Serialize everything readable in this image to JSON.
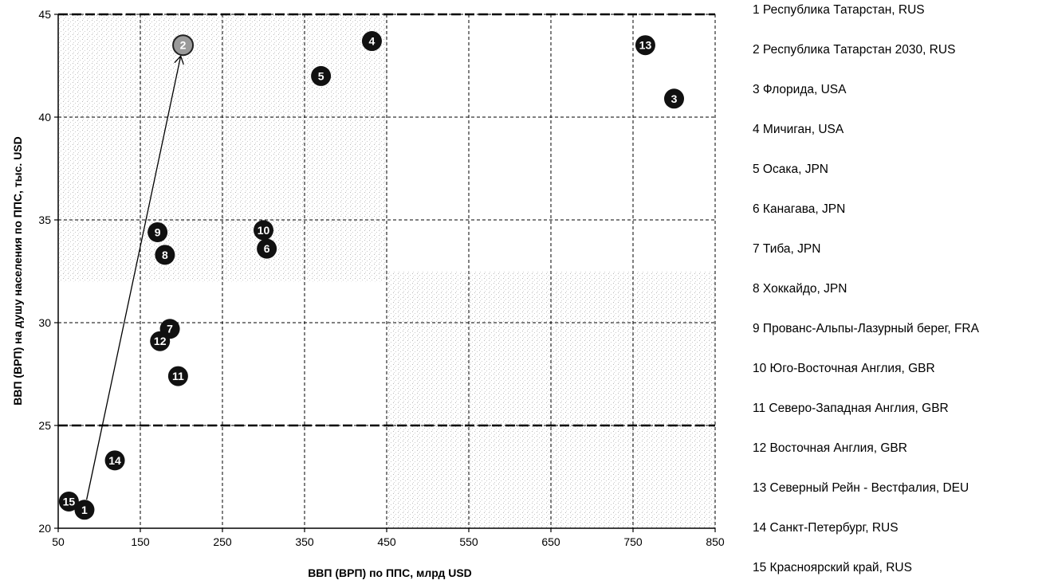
{
  "chart_data": {
    "type": "scatter",
    "xlabel": "ВВП (ВРП) по ППС, млрд USD",
    "ylabel": "ВВП (ВРП) на душу  населения по ППС, тыс. USD",
    "xlim": [
      50,
      850
    ],
    "ylim": [
      20,
      45
    ],
    "xticks": [
      "50",
      "150",
      "250",
      "350",
      "450",
      "550",
      "650",
      "750",
      "850"
    ],
    "yticks": [
      "20",
      "25",
      "30",
      "35",
      "40",
      "45"
    ],
    "grid": true,
    "thresholds": {
      "x": 450,
      "y": 25
    },
    "arrow": {
      "from_point": "1",
      "to_point": "2"
    },
    "points": [
      {
        "label": "1",
        "x": 82,
        "y": 20.9
      },
      {
        "label": "2",
        "x": 202,
        "y": 43.5
      },
      {
        "label": "3",
        "x": 800,
        "y": 40.9
      },
      {
        "label": "4",
        "x": 432,
        "y": 43.7
      },
      {
        "label": "5",
        "x": 370,
        "y": 42.0
      },
      {
        "label": "6",
        "x": 304,
        "y": 33.6
      },
      {
        "label": "7",
        "x": 186,
        "y": 29.7
      },
      {
        "label": "8",
        "x": 180,
        "y": 33.3
      },
      {
        "label": "9",
        "x": 171,
        "y": 34.4
      },
      {
        "label": "10",
        "x": 300,
        "y": 34.5
      },
      {
        "label": "11",
        "x": 196,
        "y": 27.4
      },
      {
        "label": "12",
        "x": 174,
        "y": 29.1
      },
      {
        "label": "13",
        "x": 765,
        "y": 43.5
      },
      {
        "label": "14",
        "x": 119,
        "y": 23.3
      },
      {
        "label": "15",
        "x": 63,
        "y": 21.3
      }
    ],
    "legend": [
      "1 Республика Татарстан, RUS",
      "2 Республика Татарстан 2030, RUS",
      "3 Флорида, USA",
      "4 Мичиган, USA",
      "5 Осака, JPN",
      "6 Канагава, JPN",
      "7 Тиба, JPN",
      "8 Хоккайдо, JPN",
      "9 Прованс-Альпы-Лазурный берег, FRA",
      "10 Юго-Восточная Англия, GBR",
      "11 Северо-Западная Англия, GBR",
      "12 Восточная Англия, GBR",
      "13 Северный Рейн - Вестфалия, DEU",
      "14 Санкт-Петербург, RUS",
      "15 Красноярский край, RUS"
    ],
    "colors": {
      "marker": "#111111",
      "highlight_marker": "#9a9a9a",
      "stipple": "#b5b5b5"
    }
  }
}
